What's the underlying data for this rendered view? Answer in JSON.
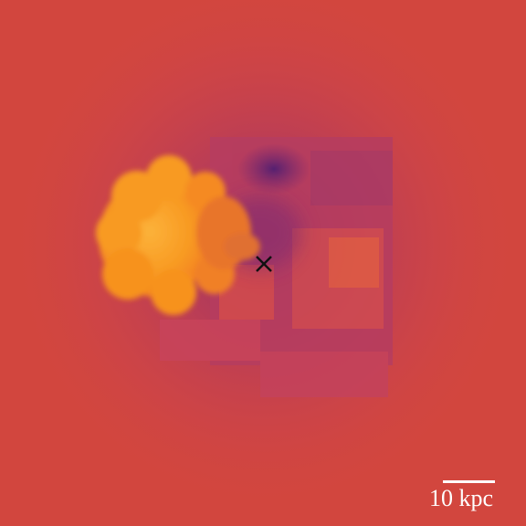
{
  "scale_bar": {
    "label": "10 kpc"
  },
  "marker": {
    "icon": "cross-icon",
    "color": "#111111"
  },
  "colors": {
    "background": "#d2463e",
    "low_density": "#4b1d72",
    "mid": "#8a2f6e",
    "high": "#f7951c",
    "peak": "#fcb23a"
  }
}
